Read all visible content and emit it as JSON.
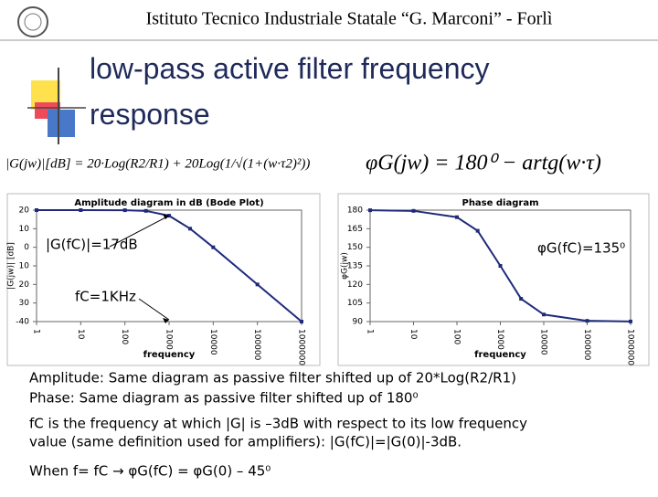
{
  "header": {
    "school": "Istituto Tecnico Industriale Statale “G. Marconi” -  Forlì"
  },
  "title": "low-pass active filter frequency response",
  "formulas": {
    "amplitude": "|G(jw)|[dB] = 20·Log(R2/R1) + 20Log(1/√(1+(w·τ2)²))",
    "phase": "φG(jw) = 180⁰ − artg(w·τ)"
  },
  "chart_data": [
    {
      "type": "line",
      "title": "Amplitude diagram in dB (Bode Plot)",
      "xlabel": "frequency",
      "ylabel": "|G(jw)| [dB]",
      "log_x": true,
      "color": "#1f2a7a",
      "x": [
        1,
        10,
        100,
        300,
        1000,
        3000,
        10000,
        100000,
        1000000
      ],
      "values": [
        20,
        20,
        19.96,
        19.6,
        17,
        10,
        0,
        -20,
        -40
      ],
      "xlim": [
        1,
        1000000
      ],
      "xticks": [
        1,
        10,
        100,
        1000,
        10000,
        100000,
        1000000
      ],
      "ylim": [
        -40,
        20
      ],
      "yticks": [
        20,
        10,
        0,
        {
          "value": -10,
          "label": "10"
        },
        {
          "value": -20,
          "label": "20"
        },
        {
          "value": -30,
          "label": "30"
        },
        -40
      ],
      "annotations": [
        "|G(fC)|=17dB",
        "fC=1KHz"
      ]
    },
    {
      "type": "line",
      "title": "Phase diagram",
      "xlabel": "frequency",
      "ylabel": "φG(jw)",
      "log_x": true,
      "color": "#1f2a7a",
      "x": [
        1,
        10,
        100,
        300,
        1000,
        3000,
        10000,
        100000,
        1000000
      ],
      "values": [
        179.9,
        179.4,
        174.3,
        163.3,
        135,
        108.4,
        95.7,
        90.6,
        90.1
      ],
      "xlim": [
        1,
        1000000
      ],
      "xticks": [
        1,
        10,
        100,
        1000,
        10000,
        100000,
        1000000
      ],
      "ylim": [
        90,
        180
      ],
      "yticks": [
        90,
        105,
        120,
        135,
        150,
        165,
        180
      ],
      "annotations": [
        "φG(fC)=135⁰"
      ]
    }
  ],
  "body": [
    "Amplitude: Same diagram as passive filter shifted up of 20*Log(R2/R1)",
    "Phase: Same diagram as passive filter shifted up of 180⁰",
    "fC is the frequency at which |G| is –3dB with respect to its low frequency",
    "value (same definition used for amplifiers): |G(fC)|=|G(0)|-3dB.",
    "When f= fC → φG(fC) = φG(0) – 45⁰"
  ]
}
